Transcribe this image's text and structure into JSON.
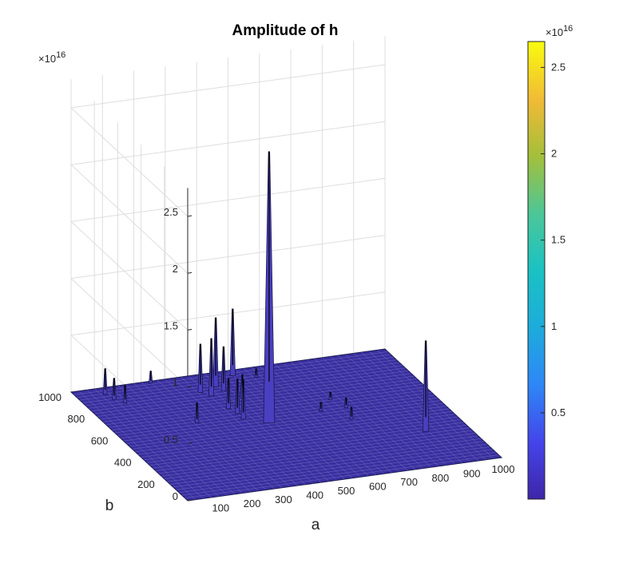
{
  "title": "Amplitude of h",
  "chart_data": {
    "type": "surface",
    "title": "Amplitude of h",
    "xlabel": "a",
    "ylabel": "b",
    "zlabel": "",
    "xlim": [
      0,
      1000
    ],
    "ylim": [
      0,
      1000
    ],
    "zlim": [
      0,
      25000000000000000
    ],
    "x_ticks": [
      "100",
      "200",
      "300",
      "400",
      "500",
      "600",
      "700",
      "800",
      "900",
      "1000"
    ],
    "y_ticks": [
      "200",
      "400",
      "600",
      "800",
      "1000"
    ],
    "z_ticks": [
      "0",
      "0.5",
      "1",
      "1.5",
      "2",
      "2.5"
    ],
    "z_multiplier": "×10",
    "z_multiplier_exp": "16",
    "grid": true,
    "colormap": "parula",
    "colorbar": {
      "range": [
        0,
        2.65
      ],
      "ticks": [
        "0.5",
        "1",
        "1.5",
        "2",
        "2.5"
      ],
      "tick_values": [
        0.5,
        1,
        1.5,
        2,
        2.5
      ],
      "multiplier": "×10",
      "multiplier_exp": "16"
    },
    "surface_color": "#3a2fa0",
    "peaks": [
      {
        "a": 460,
        "b": 540,
        "z": 2.38
      },
      {
        "a": 870,
        "b": 300,
        "z": 0.79
      },
      {
        "a": 420,
        "b": 890,
        "z": 0.6
      },
      {
        "a": 500,
        "b": 960,
        "z": 0.58
      },
      {
        "a": 380,
        "b": 820,
        "z": 0.5
      },
      {
        "a": 360,
        "b": 860,
        "z": 0.42
      },
      {
        "a": 430,
        "b": 850,
        "z": 0.38
      },
      {
        "a": 400,
        "b": 600,
        "z": 0.34
      },
      {
        "a": 400,
        "b": 650,
        "z": 0.3
      },
      {
        "a": 390,
        "b": 700,
        "z": 0.26
      },
      {
        "a": 460,
        "b": 770,
        "z": 0.2
      },
      {
        "a": 260,
        "b": 620,
        "z": 0.17
      },
      {
        "a": 90,
        "b": 950,
        "z": 0.22
      },
      {
        "a": 100,
        "b": 900,
        "z": 0.18
      },
      {
        "a": 120,
        "b": 860,
        "z": 0.15
      },
      {
        "a": 250,
        "b": 990,
        "z": 0.1
      },
      {
        "a": 700,
        "b": 480,
        "z": 0.1
      },
      {
        "a": 720,
        "b": 580,
        "z": 0.08
      },
      {
        "a": 640,
        "b": 580,
        "z": 0.07
      },
      {
        "a": 560,
        "b": 920,
        "z": 0.07
      },
      {
        "a": 700,
        "b": 660,
        "z": 0.06
      }
    ]
  }
}
